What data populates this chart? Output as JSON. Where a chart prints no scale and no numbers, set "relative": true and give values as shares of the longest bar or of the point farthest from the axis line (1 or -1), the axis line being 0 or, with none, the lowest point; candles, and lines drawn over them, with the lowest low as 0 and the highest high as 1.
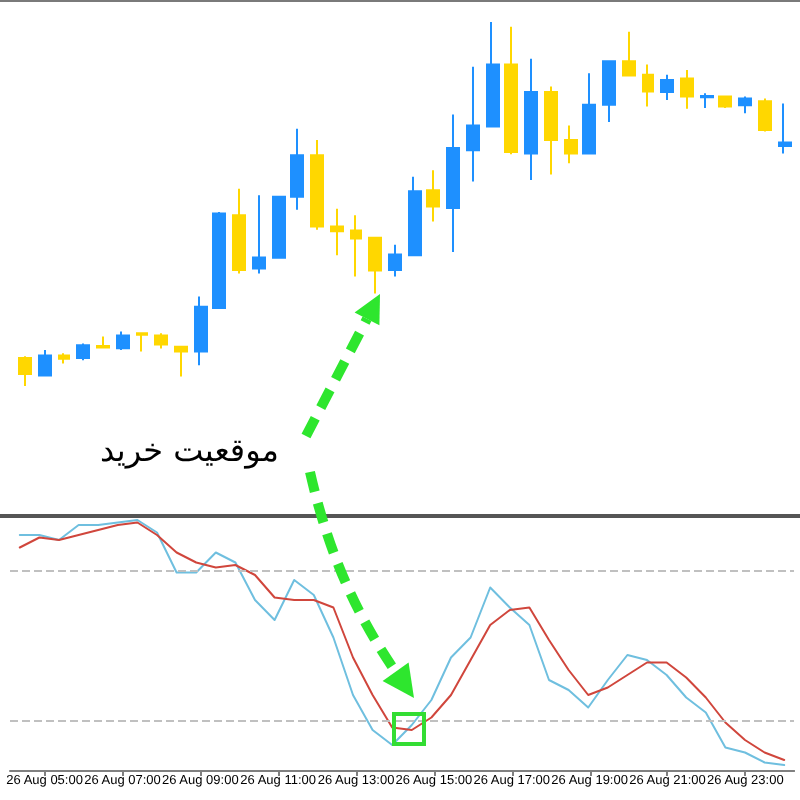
{
  "chart_data": [
    {
      "type": "candlestick",
      "categories": [
        null,
        "26 Aug 05:00",
        null,
        null,
        null,
        "26 Aug 07:00",
        null,
        null,
        null,
        "26 Aug 09:00",
        null,
        null,
        null,
        "26 Aug 11:00",
        null,
        null,
        null,
        "26 Aug 13:00",
        null,
        null,
        null,
        "26 Aug 15:00",
        null,
        null,
        null,
        "26 Aug 17:00",
        null,
        null,
        null,
        "26 Aug 19:00",
        null,
        null,
        null,
        "26 Aug 21:00",
        null,
        null,
        null,
        "26 Aug 23:00",
        null,
        null
      ],
      "ohlc": [
        [
          0.077,
          0.082,
          0,
          0.033
        ],
        [
          0.029,
          0.099,
          0.027,
          0.084
        ],
        [
          0.084,
          0.09,
          0.062,
          0.075
        ],
        [
          0.077,
          0.117,
          0.071,
          0.112
        ],
        [
          0.11,
          0.136,
          0.104,
          0.106
        ],
        [
          0.104,
          0.15,
          0.099,
          0.139
        ],
        [
          0.145,
          0.147,
          0.095,
          0.141
        ],
        [
          0.139,
          0.145,
          0.103,
          0.114
        ],
        [
          0.108,
          0.11,
          0.026,
          0.095
        ],
        [
          0.095,
          0.246,
          0.057,
          0.218
        ],
        [
          0.214,
          0.478,
          0.212,
          0.474
        ],
        [
          0.469,
          0.542,
          0.309,
          0.319
        ],
        [
          0.323,
          0.524,
          0.309,
          0.353
        ],
        [
          0.352,
          0.522,
          0.35,
          0.52
        ],
        [
          0.52,
          0.707,
          0.484,
          0.634
        ],
        [
          0.634,
          0.676,
          0.429,
          0.438
        ],
        [
          0.438,
          0.487,
          0.359,
          0.425
        ],
        [
          0.427,
          0.469,
          0.301,
          0.405
        ],
        [
          0.407,
          0.41,
          0.254,
          0.317
        ],
        [
          0.319,
          0.388,
          0.301,
          0.361
        ],
        [
          0.359,
          0.575,
          0.359,
          0.535
        ],
        [
          0.538,
          0.593,
          0.452,
          0.493
        ],
        [
          0.489,
          0.746,
          0.368,
          0.654
        ],
        [
          0.648,
          0.877,
          0.562,
          0.716
        ],
        [
          0.713,
          1,
          0.713,
          0.883
        ],
        [
          0.883,
          0.987,
          0.637,
          0.643
        ],
        [
          0.639,
          0.899,
          0.566,
          0.808
        ],
        [
          0.808,
          0.823,
          0.581,
          0.676
        ],
        [
          0.676,
          0.716,
          0.612,
          0.639
        ],
        [
          0.639,
          0.859,
          0.639,
          0.773
        ],
        [
          0.773,
          0.892,
          0.725,
          0.892
        ],
        [
          0.892,
          0.973,
          0.853,
          0.853
        ],
        [
          0.855,
          0.883,
          0.768,
          0.809
        ],
        [
          0.808,
          0.855,
          0.786,
          0.841
        ],
        [
          0.845,
          0.868,
          0.762,
          0.795
        ],
        [
          0.793,
          0.804,
          0.764,
          0.797
        ],
        [
          0.795,
          0.798,
          0.764,
          0.768
        ],
        [
          0.771,
          0.795,
          0.749,
          0.79
        ],
        [
          0.782,
          0.79,
          0.699,
          0.703
        ],
        [
          0.659,
          0.776,
          0.639,
          0.669
        ]
      ],
      "colors": [
        "#ffd700",
        "#1e90ff",
        "#ffd700",
        "#1e90ff",
        "#ffd700",
        "#1e90ff",
        "#ffd700",
        "#ffd700",
        "#ffd700",
        "#1e90ff",
        "#1e90ff",
        "#ffd700",
        "#1e90ff",
        "#1e90ff",
        "#1e90ff",
        "#ffd700",
        "#ffd700",
        "#ffd700",
        "#ffd700",
        "#1e90ff",
        "#1e90ff",
        "#ffd700",
        "#1e90ff",
        "#1e90ff",
        "#1e90ff",
        "#ffd700",
        "#1e90ff",
        "#ffd700",
        "#ffd700",
        "#1e90ff",
        "#1e90ff",
        "#ffd700",
        "#ffd700",
        "#1e90ff",
        "#ffd700",
        "#1e90ff",
        "#ffd700",
        "#1e90ff",
        "#ffd700",
        "#1e90ff"
      ],
      "relative": true,
      "annotations": [
        "موقعیت خرید"
      ]
    },
    {
      "type": "line",
      "categories": [
        null,
        null,
        null,
        null,
        null,
        null,
        null,
        null,
        null,
        null,
        null,
        null,
        null,
        null,
        null,
        null,
        null,
        null,
        null,
        null,
        null,
        null,
        null,
        null,
        null,
        null,
        null,
        null,
        null,
        null,
        null,
        null,
        null,
        null,
        null,
        null,
        null,
        null,
        null,
        null
      ],
      "series": [
        {
          "color": "#6fbfdf",
          "values": [
            0.94,
            0.94,
            0.92,
            0.98,
            0.98,
            0.99,
            1,
            0.95,
            0.79,
            0.79,
            0.87,
            0.83,
            0.68,
            0.6,
            0.76,
            0.7,
            0.53,
            0.3,
            0.16,
            0.1,
            0.18,
            0.28,
            0.45,
            0.53,
            0.73,
            0.65,
            0.58,
            0.36,
            0.32,
            0.25,
            0.36,
            0.46,
            0.44,
            0.38,
            0.29,
            0.23,
            0.09,
            0.07,
            0.03,
            0.02
          ]
        },
        {
          "color": "#d0463c",
          "values": [
            0.89,
            0.93,
            0.92,
            0.94,
            0.96,
            0.98,
            0.99,
            0.94,
            0.87,
            0.83,
            0.81,
            0.82,
            0.78,
            0.69,
            0.68,
            0.68,
            0.65,
            0.45,
            0.3,
            0.17,
            0.16,
            0.21,
            0.3,
            0.44,
            0.58,
            0.64,
            0.65,
            0.52,
            0.4,
            0.3,
            0.33,
            0.38,
            0.43,
            0.43,
            0.37,
            0.29,
            0.19,
            0.12,
            0.07,
            0.04
          ]
        }
      ],
      "relative": true,
      "marker": "none",
      "ref_lines": [
        {
          "axis": "y",
          "value": 0.8,
          "color": "#c0c0c0",
          "line_style": "dashed"
        },
        {
          "axis": "y",
          "value": 0.2,
          "color": "#c0c0c0",
          "line_style": "dashed"
        }
      ]
    }
  ]
}
